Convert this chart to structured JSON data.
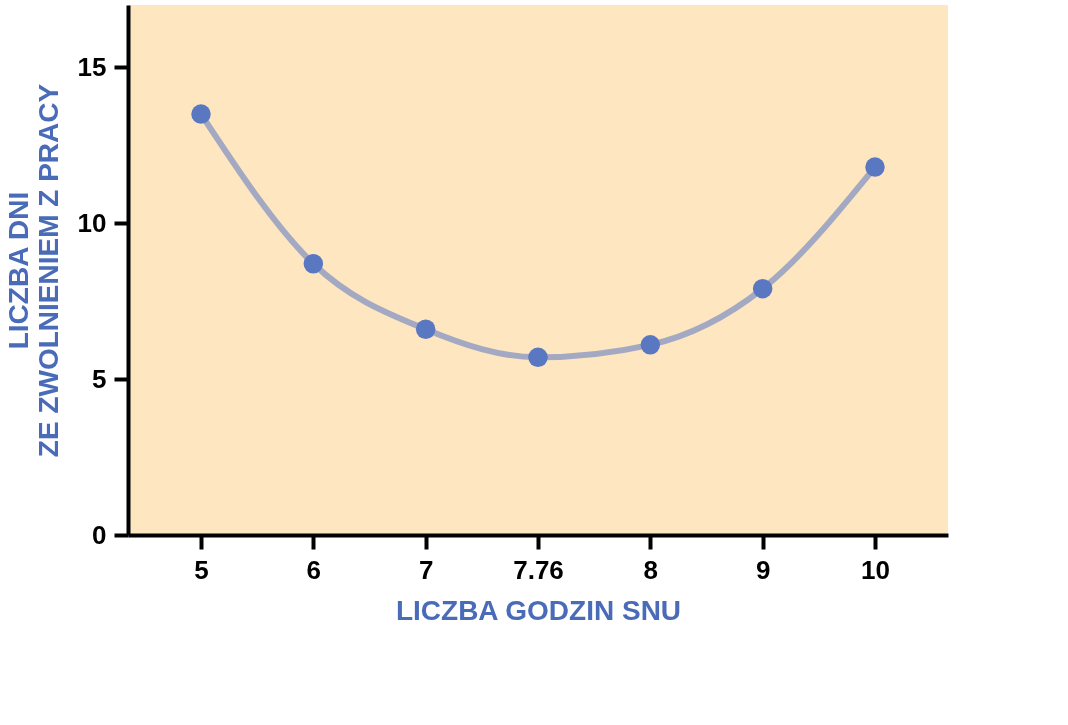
{
  "chart_data": {
    "type": "line",
    "xlabel": "LICZBA GODZIN SNU",
    "ylabel": "LICZBA DNI\nZE ZWOLNIENIEM Z PRACY",
    "categories": [
      "5",
      "6",
      "7",
      "7.76",
      "8",
      "9",
      "10"
    ],
    "series": [
      {
        "color": "#5a77c2",
        "values": [
          13.5,
          8.7,
          6.6,
          5.7,
          6.1,
          7.9,
          11.8
        ]
      }
    ],
    "ylim": [
      0,
      17
    ],
    "yticks": [
      0,
      5,
      10,
      15
    ],
    "grid": false,
    "marker": "circle",
    "line_style": "solid"
  }
}
